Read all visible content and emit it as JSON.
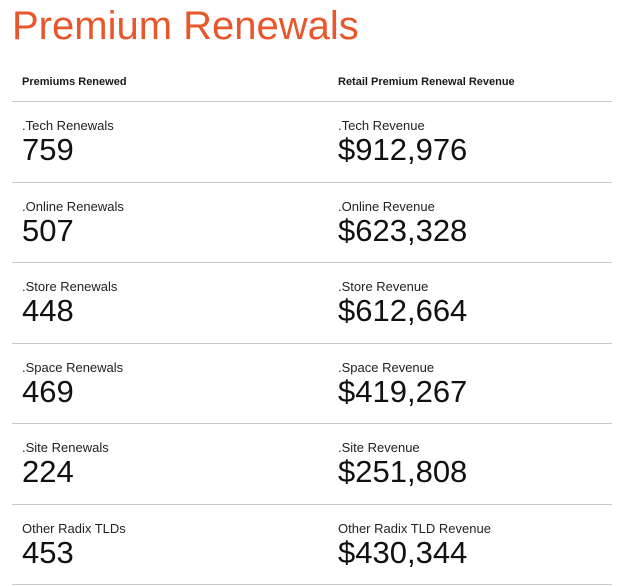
{
  "title": "Premium Renewals",
  "columns": {
    "left": "Premiums Renewed",
    "right": "Retail Premium Renewal Revenue"
  },
  "rows": [
    {
      "left_label": ".Tech Renewals",
      "left_value": "759",
      "right_label": ".Tech Revenue",
      "right_value": "$912,976"
    },
    {
      "left_label": ".Online Renewals",
      "left_value": "507",
      "right_label": ".Online Revenue",
      "right_value": "$623,328"
    },
    {
      "left_label": ".Store Renewals",
      "left_value": "448",
      "right_label": ".Store Revenue",
      "right_value": "$612,664"
    },
    {
      "left_label": ".Space Renewals",
      "left_value": "469",
      "right_label": ".Space Revenue",
      "right_value": "$419,267"
    },
    {
      "left_label": ".Site Renewals",
      "left_value": "224",
      "right_label": ".Site Revenue",
      "right_value": "$251,808"
    },
    {
      "left_label": "Other Radix TLDs",
      "left_value": "453",
      "right_label": "Other Radix TLD Revenue",
      "right_value": "$430,344"
    }
  ]
}
